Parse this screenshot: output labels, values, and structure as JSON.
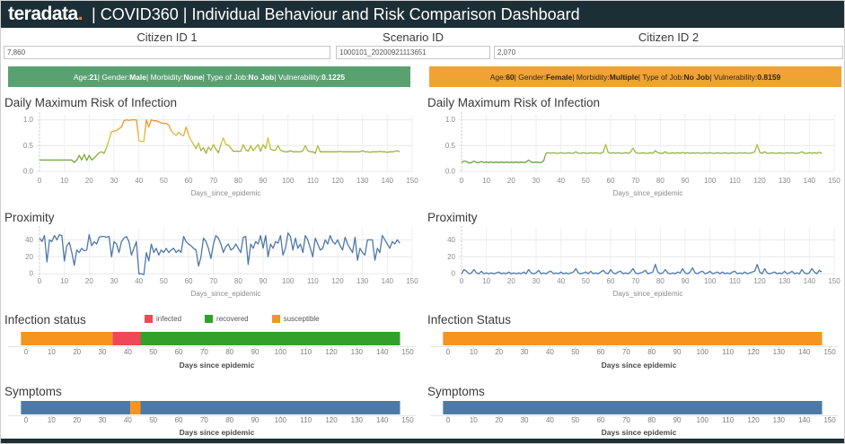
{
  "header": {
    "logo": "teradata",
    "logo_dot": ".",
    "title": "| COVID360 | Individual Behaviour and Risk Comparison Dashboard",
    "bg_color": "#1C2E36",
    "dot_color": "#F38121"
  },
  "params": {
    "citizen1": {
      "label": "Citizen ID 1",
      "value": "7,860"
    },
    "scenario": {
      "label": "Scenario ID",
      "value": "1000101_20200921113651"
    },
    "citizen2": {
      "label": "Citizen ID 2",
      "value": "2,070"
    }
  },
  "profiles": {
    "left": {
      "fields": [
        {
          "label": "Age",
          "value": "21"
        },
        {
          "label": "Gender",
          "value": "Male"
        },
        {
          "label": "Morbidity",
          "value": "None"
        },
        {
          "label": "Type of Job",
          "value": "No Job"
        },
        {
          "label": "Vulnerability",
          "value": "0.1225"
        }
      ],
      "bg": "#5AA172",
      "text": "#FFFFFF"
    },
    "right": {
      "fields": [
        {
          "label": "Age",
          "value": "60"
        },
        {
          "label": "Gender",
          "value": "Female"
        },
        {
          "label": "Morbidity",
          "value": "Multiple"
        },
        {
          "label": "Type of Job",
          "value": "No Job"
        },
        {
          "label": "Vulnerability",
          "value": "0.8159"
        }
      ],
      "bg": "#F0A233",
      "text": "#33271A"
    }
  },
  "colors": {
    "susceptible": "#F5941F",
    "infected": "#EF4857",
    "recovered": "#33A02C",
    "proximity_line": "#4E79A7",
    "symptom_bar": "#4E79A7"
  },
  "chart_data": [
    {
      "id": "risk1",
      "type": "line",
      "title": "Daily Maximum Risk of Infection",
      "xlabel": "Days_since_epidemic",
      "x_ticks": [
        0,
        10,
        20,
        30,
        40,
        50,
        60,
        70,
        80,
        90,
        100,
        110,
        120,
        130,
        140,
        150
      ],
      "xlim": [
        0,
        150
      ],
      "ylim": [
        0,
        1.08
      ],
      "y_ticks": [
        0,
        0.5,
        1.0
      ],
      "y_tick_labels": [
        "0.0",
        "0.5",
        "1.0"
      ],
      "gradient": [
        {
          "offset": 0,
          "color": "#44923F"
        },
        {
          "offset": 0.3,
          "color": "#86AE3C"
        },
        {
          "offset": 0.55,
          "color": "#D9C639"
        },
        {
          "offset": 0.8,
          "color": "#F09E2E"
        },
        {
          "offset": 1,
          "color": "#EE8130"
        }
      ],
      "values": [
        0.22,
        0.22,
        0.22,
        0.22,
        0.22,
        0.22,
        0.22,
        0.22,
        0.22,
        0.22,
        0.22,
        0.22,
        0.22,
        0.22,
        0.17,
        0.22,
        0.31,
        0.22,
        0.33,
        0.21,
        0.31,
        0.22,
        0.26,
        0.31,
        0.36,
        0.38,
        0.35,
        0.46,
        0.62,
        0.77,
        0.78,
        0.79,
        0.83,
        0.86,
        0.98,
        1.0,
        0.99,
        1.0,
        1.0,
        1.0,
        0.6,
        0.58,
        0.58,
        1.0,
        0.86,
        1.0,
        0.98,
        0.98,
        0.96,
        0.94,
        0.93,
        0.93,
        0.9,
        0.79,
        0.73,
        0.7,
        0.76,
        0.71,
        0.69,
        0.86,
        0.71,
        0.6,
        0.52,
        0.44,
        0.55,
        0.4,
        0.46,
        0.35,
        0.47,
        0.41,
        0.52,
        0.43,
        0.36,
        0.52,
        0.65,
        0.52,
        0.51,
        0.45,
        0.39,
        0.39,
        0.39,
        0.39,
        0.52,
        0.42,
        0.39,
        0.5,
        0.4,
        0.46,
        0.52,
        0.39,
        0.52,
        0.44,
        0.65,
        0.43,
        0.41,
        0.41,
        0.5,
        0.41,
        0.39,
        0.38,
        0.38,
        0.4,
        0.38,
        0.38,
        0.38,
        0.38,
        0.4,
        0.5,
        0.4,
        0.38,
        0.38,
        0.35,
        0.5,
        0.38,
        0.38,
        0.38,
        0.38,
        0.38,
        0.38,
        0.38,
        0.38,
        0.39,
        0.38,
        0.38,
        0.38,
        0.38,
        0.38,
        0.38,
        0.38,
        0.38,
        0.4,
        0.38,
        0.38,
        0.37,
        0.38,
        0.38,
        0.38,
        0.39,
        0.38,
        0.38,
        0.37,
        0.38,
        0.38,
        0.39,
        0.4,
        0.38
      ]
    },
    {
      "id": "risk2",
      "type": "line",
      "title": "Daily Maximum Risk of Infection",
      "xlabel": "Days_since_epidemic",
      "x_ticks": [
        0,
        10,
        20,
        30,
        40,
        50,
        60,
        70,
        80,
        90,
        100,
        110,
        120,
        130,
        140,
        150
      ],
      "xlim": [
        0,
        150
      ],
      "ylim": [
        0,
        1.08
      ],
      "y_ticks": [
        0,
        0.5,
        1.0
      ],
      "y_tick_labels": [
        "0.0",
        "0.5",
        "1.0"
      ],
      "gradient": [
        {
          "offset": 0,
          "color": "#44923F"
        },
        {
          "offset": 0.3,
          "color": "#86AE3C"
        },
        {
          "offset": 0.55,
          "color": "#D9C639"
        },
        {
          "offset": 0.8,
          "color": "#F09E2E"
        },
        {
          "offset": 1,
          "color": "#EE8130"
        }
      ],
      "values": [
        0.17,
        0.2,
        0.19,
        0.16,
        0.17,
        0.2,
        0.17,
        0.17,
        0.19,
        0.17,
        0.18,
        0.17,
        0.18,
        0.17,
        0.18,
        0.17,
        0.18,
        0.17,
        0.18,
        0.17,
        0.18,
        0.17,
        0.18,
        0.17,
        0.18,
        0.17,
        0.18,
        0.22,
        0.18,
        0.17,
        0.18,
        0.17,
        0.17,
        0.2,
        0.35,
        0.36,
        0.35,
        0.36,
        0.35,
        0.35,
        0.36,
        0.35,
        0.35,
        0.36,
        0.35,
        0.35,
        0.38,
        0.35,
        0.35,
        0.36,
        0.35,
        0.35,
        0.36,
        0.35,
        0.36,
        0.35,
        0.35,
        0.37,
        0.52,
        0.37,
        0.35,
        0.36,
        0.35,
        0.36,
        0.35,
        0.35,
        0.36,
        0.35,
        0.37,
        0.45,
        0.37,
        0.35,
        0.35,
        0.36,
        0.35,
        0.35,
        0.36,
        0.35,
        0.4,
        0.36,
        0.35,
        0.35,
        0.38,
        0.35,
        0.35,
        0.36,
        0.35,
        0.36,
        0.35,
        0.37,
        0.35,
        0.36,
        0.35,
        0.36,
        0.35,
        0.36,
        0.35,
        0.35,
        0.36,
        0.35,
        0.36,
        0.35,
        0.35,
        0.36,
        0.35,
        0.35,
        0.36,
        0.35,
        0.35,
        0.36,
        0.35,
        0.35,
        0.36,
        0.35,
        0.36,
        0.35,
        0.35,
        0.36,
        0.38,
        0.52,
        0.37,
        0.35,
        0.38,
        0.35,
        0.35,
        0.36,
        0.35,
        0.35,
        0.36,
        0.35,
        0.35,
        0.36,
        0.35,
        0.36,
        0.35,
        0.35,
        0.36,
        0.38,
        0.35,
        0.35,
        0.36,
        0.35,
        0.36,
        0.35,
        0.37,
        0.35
      ]
    },
    {
      "id": "prox1",
      "type": "line",
      "title": "Proximity",
      "xlabel": "Days_since_epidemic",
      "x_ticks": [
        0,
        10,
        20,
        30,
        40,
        50,
        60,
        70,
        80,
        90,
        100,
        110,
        120,
        130,
        140,
        150
      ],
      "xlim": [
        0,
        150
      ],
      "ylim": [
        -4,
        52
      ],
      "y_ticks": [
        0,
        20,
        40
      ],
      "y_tick_labels": [
        "0",
        "20",
        "40"
      ],
      "color": "#4E79A7",
      "values": [
        42,
        38,
        45,
        14,
        40,
        38,
        45,
        40,
        46,
        45,
        15,
        33,
        37,
        25,
        10,
        28,
        25,
        30,
        27,
        28,
        46,
        33,
        38,
        35,
        43,
        44,
        44,
        43,
        44,
        20,
        38,
        35,
        25,
        38,
        42,
        44,
        38,
        22,
        30,
        38,
        0,
        0,
        -1,
        25,
        15,
        35,
        25,
        30,
        22,
        28,
        25,
        30,
        25,
        28,
        30,
        25,
        28,
        25,
        44,
        38,
        35,
        33,
        30,
        28,
        9,
        20,
        42,
        38,
        30,
        18,
        35,
        45,
        42,
        35,
        25,
        32,
        35,
        28,
        30,
        35,
        30,
        25,
        43,
        44,
        11,
        35,
        30,
        38,
        35,
        45,
        30,
        45,
        20,
        35,
        30,
        38,
        36,
        45,
        22,
        30,
        48,
        44,
        28,
        42,
        30,
        35,
        25,
        45,
        40,
        30,
        20,
        42,
        35,
        28,
        30,
        40,
        35,
        45,
        38,
        35,
        40,
        33,
        28,
        43,
        35,
        30,
        25,
        43,
        16,
        30,
        25,
        22,
        40,
        40,
        40,
        16,
        30,
        25,
        45,
        40,
        35,
        30,
        38,
        35,
        40,
        36
      ]
    },
    {
      "id": "prox2",
      "type": "line",
      "title": "Proximity",
      "xlabel": "Days_since_epidemic",
      "x_ticks": [
        0,
        10,
        20,
        30,
        40,
        50,
        60,
        70,
        80,
        90,
        100,
        110,
        120,
        130,
        140,
        150
      ],
      "xlim": [
        0,
        150
      ],
      "ylim": [
        -4,
        52
      ],
      "y_ticks": [
        0,
        20,
        40
      ],
      "y_tick_labels": [
        "0",
        "20",
        "40"
      ],
      "color": "#4E79A7",
      "values": [
        0,
        5,
        3,
        0,
        1,
        5,
        1,
        0,
        3,
        0,
        1,
        0,
        1,
        0,
        1,
        2,
        0,
        1,
        0,
        2,
        0,
        1,
        0,
        1,
        0,
        2,
        0,
        5,
        1,
        0,
        1,
        4,
        0,
        1,
        0,
        2,
        3,
        0,
        1,
        0,
        2,
        0,
        1,
        0,
        1,
        2,
        6,
        1,
        0,
        1,
        2,
        0,
        3,
        0,
        1,
        0,
        2,
        4,
        1,
        0,
        5,
        1,
        0,
        2,
        3,
        0,
        1,
        0,
        2,
        6,
        1,
        0,
        1,
        2,
        4,
        0,
        1,
        2,
        11,
        2,
        0,
        1,
        5,
        1,
        0,
        1,
        0,
        2,
        1,
        6,
        1,
        0,
        2,
        7,
        1,
        0,
        2,
        3,
        0,
        1,
        3,
        0,
        1,
        2,
        0,
        2,
        0,
        1,
        0,
        2,
        3,
        0,
        1,
        0,
        2,
        0,
        1,
        2,
        3,
        11,
        2,
        0,
        6,
        1,
        0,
        1,
        2,
        0,
        1,
        0,
        3,
        0,
        1,
        3,
        0,
        1,
        0,
        5,
        1,
        0,
        1,
        6,
        2,
        0,
        4,
        2
      ]
    },
    {
      "id": "status1",
      "type": "gantt",
      "title": "Infection status",
      "xlabel": "Days since epidemic",
      "x_ticks": [
        0,
        10,
        20,
        30,
        40,
        50,
        60,
        70,
        80,
        90,
        100,
        110,
        120,
        130,
        140,
        150
      ],
      "xlim": [
        0,
        150
      ],
      "legend": [
        {
          "label": "infected",
          "color": "#EF4857"
        },
        {
          "label": "recovered",
          "color": "#33A02C"
        },
        {
          "label": "susceptible",
          "color": "#F5941F"
        }
      ],
      "segments": [
        {
          "label": "susceptible",
          "start": -2,
          "end": 34,
          "color": "#F5941F"
        },
        {
          "label": "infected",
          "start": 34,
          "end": 45,
          "color": "#EF4857"
        },
        {
          "label": "recovered",
          "start": 45,
          "end": 147,
          "color": "#33A02C"
        }
      ]
    },
    {
      "id": "status2",
      "type": "gantt",
      "title": "Infection Status",
      "xlabel": "Days since epidemic",
      "x_ticks": [
        0,
        10,
        20,
        30,
        40,
        50,
        60,
        70,
        80,
        90,
        100,
        110,
        120,
        130,
        140,
        150
      ],
      "xlim": [
        0,
        150
      ],
      "segments": [
        {
          "label": "susceptible",
          "start": -2,
          "end": 147,
          "color": "#F5941F"
        }
      ]
    },
    {
      "id": "symptoms1",
      "type": "gantt",
      "title": "Symptoms",
      "xlabel": "Days since epidemic",
      "x_ticks": [
        0,
        10,
        20,
        30,
        40,
        50,
        60,
        70,
        80,
        90,
        100,
        110,
        120,
        130,
        140,
        150
      ],
      "xlim": [
        0,
        150
      ],
      "segments": [
        {
          "label": "",
          "start": -2,
          "end": 41,
          "color": "#4E79A7"
        },
        {
          "label": "",
          "start": 41,
          "end": 45,
          "color": "#F5941F"
        },
        {
          "label": "",
          "start": 45,
          "end": 147,
          "color": "#4E79A7"
        }
      ]
    },
    {
      "id": "symptoms2",
      "type": "gantt",
      "title": "Symptoms",
      "xlabel": "Days since epidemic",
      "x_ticks": [
        0,
        10,
        20,
        30,
        40,
        50,
        60,
        70,
        80,
        90,
        100,
        110,
        120,
        130,
        140,
        150
      ],
      "xlim": [
        0,
        150
      ],
      "segments": [
        {
          "label": "",
          "start": -2,
          "end": 147,
          "color": "#4E79A7"
        }
      ]
    }
  ]
}
